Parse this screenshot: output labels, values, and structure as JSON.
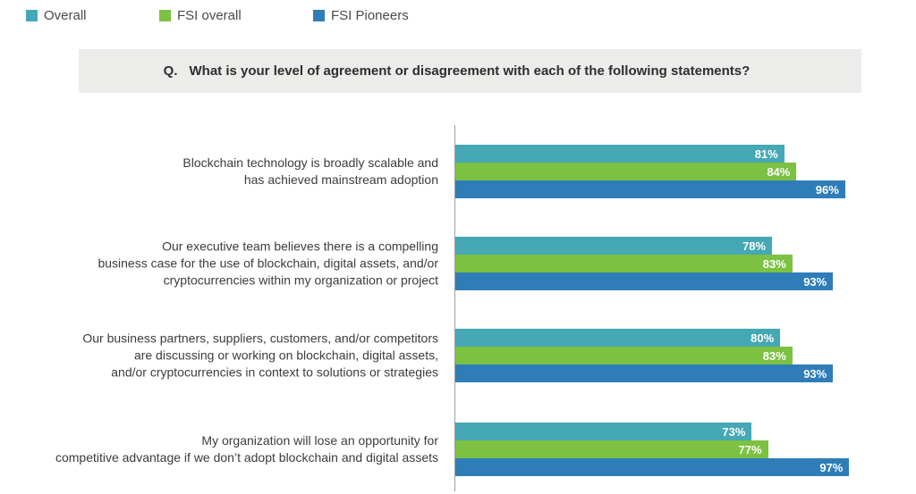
{
  "legend": [
    {
      "label": "Overall",
      "color": "#45a8b5"
    },
    {
      "label": "FSI overall",
      "color": "#7cc142"
    },
    {
      "label": "FSI Pioneers",
      "color": "#2e7db9"
    }
  ],
  "question": {
    "prefix": "Q.",
    "text": "What is your level of agreement or disagreement with each of the following statements?"
  },
  "chart_data": {
    "type": "bar",
    "orientation": "horizontal",
    "title": "Q. What is your level of agreement or disagreement with each of the following statements?",
    "unit": "%",
    "xlim": [
      0,
      100
    ],
    "grid": false,
    "legend_position": "top-left",
    "categories": [
      {
        "label": "Blockchain technology is broadly scalable and has achieved mainstream adoption",
        "lines": [
          "Blockchain technology is broadly scalable and",
          "has achieved mainstream adoption"
        ]
      },
      {
        "label": "Our executive team believes there is a compelling business case for the use of blockchain, digital assets, and/or cryptocurrencies within my organization or project",
        "lines": [
          "Our executive team believes there is a compelling",
          "business case for the use of blockchain, digital assets, and/or",
          "cryptocurrencies within my organization or project"
        ]
      },
      {
        "label": "Our business partners, suppliers, customers, and/or competitors are discussing or working on blockchain, digital assets, and/or cryptocurrencies in context to solutions or strategies",
        "lines": [
          "Our business partners, suppliers, customers, and/or competitors",
          "are discussing or working on blockchain, digital assets,",
          "and/or cryptocurrencies in context to solutions or strategies"
        ]
      },
      {
        "label": "My organization will lose an opportunity for competitive advantage if we don’t adopt blockchain and digital assets",
        "lines": [
          "My organization will lose an opportunity for",
          "competitive advantage if we don’t adopt blockchain and digital assets"
        ]
      }
    ],
    "series": [
      {
        "name": "Overall",
        "color": "#45a8b5",
        "values": [
          81,
          78,
          80,
          73
        ]
      },
      {
        "name": "FSI overall",
        "color": "#7cc142",
        "values": [
          84,
          83,
          83,
          77
        ]
      },
      {
        "name": "FSI Pioneers",
        "color": "#2e7db9",
        "values": [
          96,
          93,
          93,
          97
        ]
      }
    ]
  }
}
